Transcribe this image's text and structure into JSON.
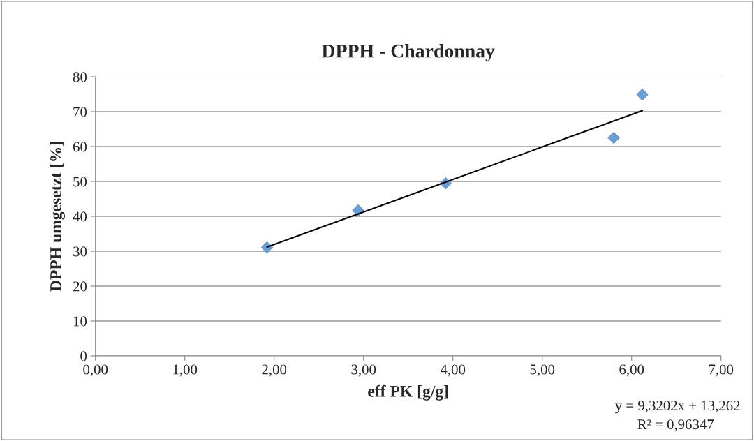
{
  "chart_data": {
    "type": "scatter",
    "title": "DPPH - Chardonnay",
    "xlabel": "eff PK [g/g]",
    "ylabel": "DPPH umgesetzt [%]",
    "series": [
      {
        "color": "#6a9fd8",
        "marker": "diamond",
        "x": [
          1.92,
          2.94,
          3.92,
          5.8,
          6.12
        ],
        "values": [
          31.1,
          41.7,
          49.5,
          62.5,
          74.9
        ]
      },
      {
        "type": "line",
        "color": "#000000",
        "marker": "none",
        "line_style": "solid",
        "x": [
          1.92,
          6.12
        ],
        "values": [
          31.2,
          70.3
        ]
      }
    ],
    "xlim": [
      0,
      7
    ],
    "xticks": [
      {
        "value": 0,
        "label": "0,00"
      },
      {
        "value": 1,
        "label": "1,00"
      },
      {
        "value": 2,
        "label": "2,00"
      },
      {
        "value": 3,
        "label": "3,00"
      },
      {
        "value": 4,
        "label": "4,00"
      },
      {
        "value": 5,
        "label": "5,00"
      },
      {
        "value": 6,
        "label": "6,00"
      },
      {
        "value": 7,
        "label": "7,00"
      }
    ],
    "ylim": [
      0,
      80
    ],
    "yticks": [
      0,
      10,
      20,
      30,
      40,
      50,
      60,
      70,
      80
    ],
    "grid": "y",
    "legend": false,
    "annotations": [
      "y = 9,3202x + 13,262",
      "R² = 0,96347"
    ]
  }
}
